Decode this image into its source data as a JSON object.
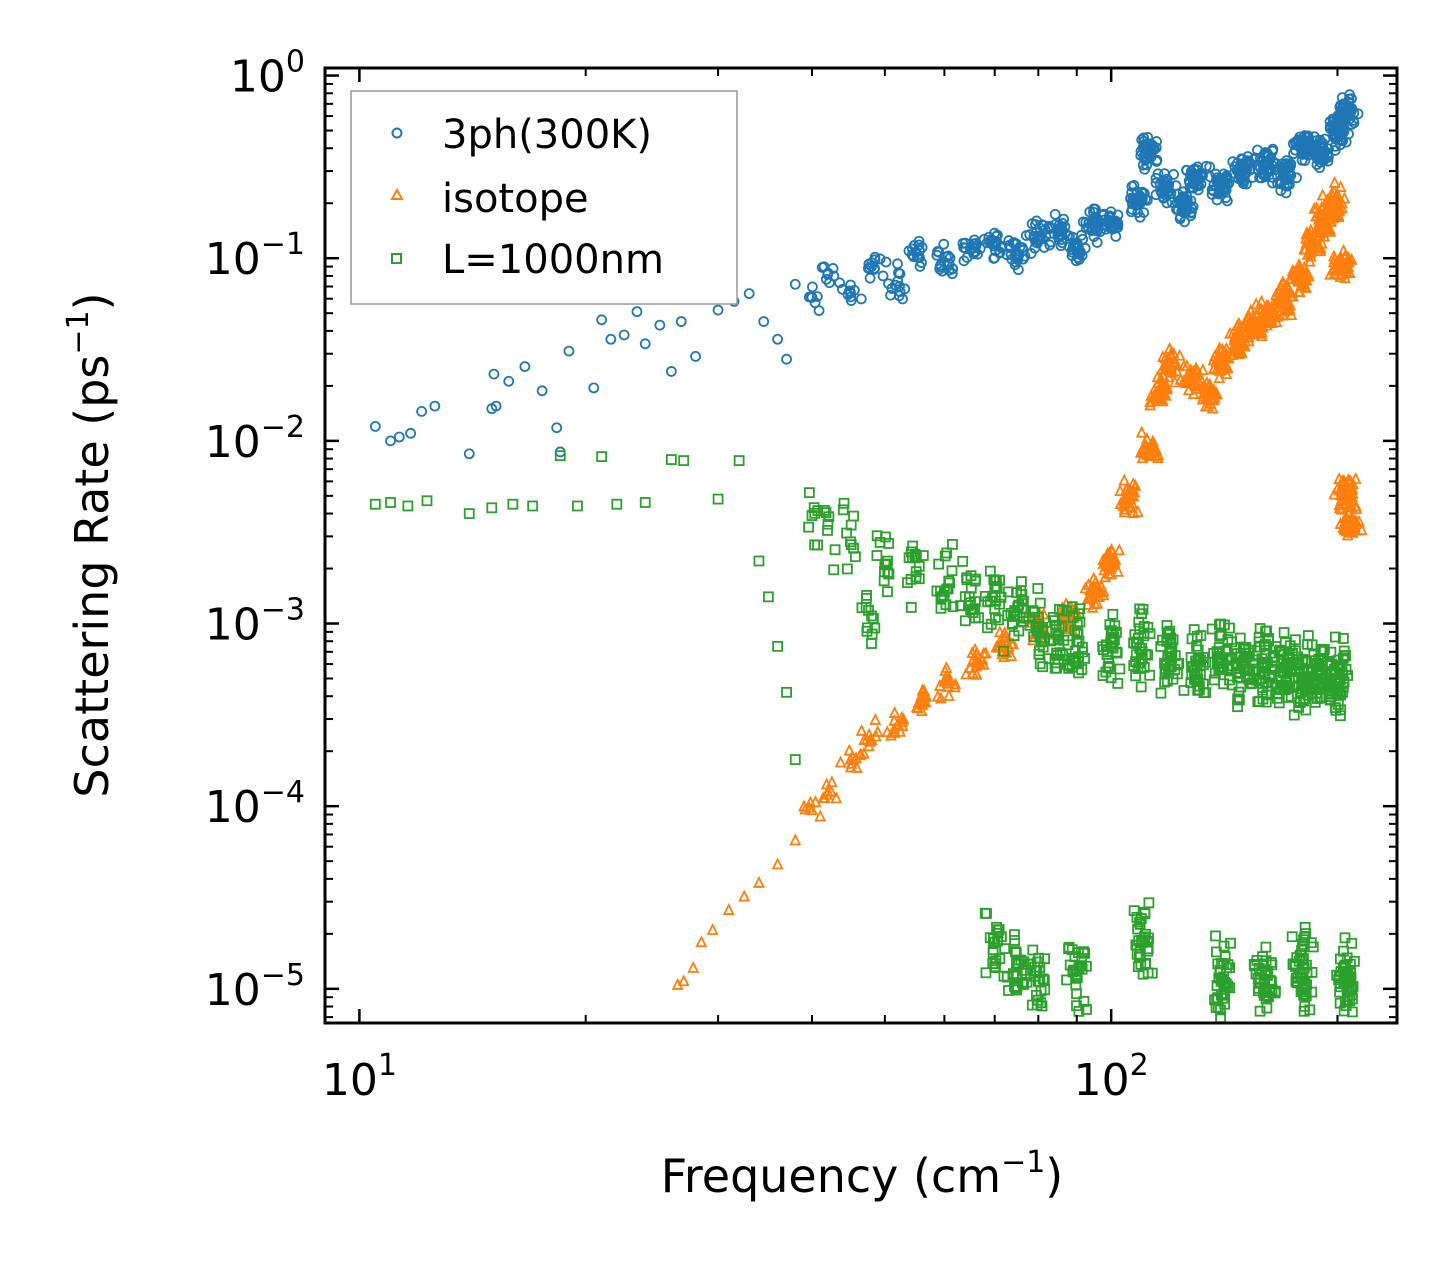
{
  "chart_data": {
    "type": "scatter",
    "xscale": "log",
    "yscale": "log",
    "xlim": [
      9,
      240
    ],
    "ylim": [
      6.5e-06,
      1.1
    ],
    "xlabel": "Frequency (cm",
    "xlabel_sup": "−1",
    "xlabel_end": ")",
    "ylabel": "Scattering Rate (ps",
    "ylabel_sup": "−1",
    "ylabel_end": ")",
    "x_ticks": [
      {
        "value": 10,
        "base": "10",
        "exp": "1"
      },
      {
        "value": 100,
        "base": "10",
        "exp": "2"
      }
    ],
    "y_ticks": [
      {
        "value": 1,
        "base": "10",
        "exp": "0"
      },
      {
        "value": 0.1,
        "base": "10",
        "exp": "−1"
      },
      {
        "value": 0.01,
        "base": "10",
        "exp": "−2"
      },
      {
        "value": 0.001,
        "base": "10",
        "exp": "−3"
      },
      {
        "value": 0.0001,
        "base": "10",
        "exp": "−4"
      },
      {
        "value": 1e-05,
        "base": "10",
        "exp": "−5"
      }
    ],
    "legend_position": "top-left",
    "series": [
      {
        "name": "3ph(300K)",
        "marker": "circle",
        "color": "#1f77b4",
        "points": [
          [
            10.5,
            0.012
          ],
          [
            11,
            0.01
          ],
          [
            11.3,
            0.0105
          ],
          [
            11.7,
            0.011
          ],
          [
            12.1,
            0.0145
          ],
          [
            12.6,
            0.0155
          ],
          [
            14,
            0.0085
          ],
          [
            15,
            0.015
          ],
          [
            15.2,
            0.0155
          ],
          [
            15.1,
            0.0232
          ],
          [
            15.8,
            0.0212
          ],
          [
            16.6,
            0.0255
          ],
          [
            17.5,
            0.0188
          ],
          [
            18.3,
            0.0118
          ],
          [
            18.5,
            0.0087
          ],
          [
            19,
            0.031
          ],
          [
            20.5,
            0.0195
          ],
          [
            21,
            0.046
          ],
          [
            21.6,
            0.036
          ],
          [
            22.5,
            0.038
          ],
          [
            23.4,
            0.051
          ],
          [
            24,
            0.034
          ],
          [
            25.1,
            0.043
          ],
          [
            26,
            0.024
          ],
          [
            26.8,
            0.045
          ],
          [
            28,
            0.029
          ],
          [
            29,
            0.068
          ],
          [
            30,
            0.052
          ],
          [
            31.5,
            0.058
          ],
          [
            33,
            0.064
          ],
          [
            34.5,
            0.045
          ],
          [
            36,
            0.036
          ],
          [
            37,
            0.028
          ],
          [
            38,
            0.072
          ],
          [
            40,
            0.061
          ],
          [
            42,
            0.083
          ],
          [
            45,
            0.065
          ],
          [
            48,
            0.09
          ],
          [
            52,
            0.075
          ],
          [
            55,
            0.108
          ],
          [
            60,
            0.095
          ],
          [
            65,
            0.112
          ],
          [
            70,
            0.12
          ],
          [
            75,
            0.107
          ],
          [
            80,
            0.132
          ],
          [
            85,
            0.14
          ],
          [
            90,
            0.115
          ],
          [
            95,
            0.155
          ],
          [
            100,
            0.16
          ],
          [
            108,
            0.21
          ],
          [
            112,
            0.38
          ],
          [
            118,
            0.24
          ],
          [
            125,
            0.2
          ],
          [
            130,
            0.28
          ],
          [
            140,
            0.25
          ],
          [
            150,
            0.3
          ],
          [
            160,
            0.32
          ],
          [
            170,
            0.29
          ],
          [
            180,
            0.41
          ],
          [
            190,
            0.38
          ],
          [
            200,
            0.5
          ],
          [
            205,
            0.62
          ]
        ]
      },
      {
        "name": "isotope",
        "marker": "triangle",
        "color": "#ff7f0e",
        "points": [
          [
            26.5,
            1.05e-05
          ],
          [
            27,
            1.1e-05
          ],
          [
            27.8,
            1.3e-05
          ],
          [
            28.5,
            1.8e-05
          ],
          [
            29.5,
            2.1e-05
          ],
          [
            31,
            2.7e-05
          ],
          [
            32.5,
            3.2e-05
          ],
          [
            34,
            3.8e-05
          ],
          [
            36,
            4.8e-05
          ],
          [
            38,
            6.5e-05
          ],
          [
            40,
            9.5e-05
          ],
          [
            42,
            0.00012
          ],
          [
            45,
            0.00018
          ],
          [
            48,
            0.00023
          ],
          [
            52,
            0.00028
          ],
          [
            56,
            0.00038
          ],
          [
            60,
            0.00048
          ],
          [
            66,
            0.00062
          ],
          [
            72,
            0.00075
          ],
          [
            80,
            0.00095
          ],
          [
            88,
            0.0011
          ],
          [
            95,
            0.0015
          ],
          [
            100,
            0.0022
          ],
          [
            106,
            0.0048
          ],
          [
            112,
            0.009
          ],
          [
            116,
            0.018
          ],
          [
            120,
            0.026
          ],
          [
            128,
            0.022
          ],
          [
            135,
            0.018
          ],
          [
            140,
            0.028
          ],
          [
            148,
            0.035
          ],
          [
            155,
            0.042
          ],
          [
            162,
            0.048
          ],
          [
            170,
            0.06
          ],
          [
            178,
            0.08
          ],
          [
            185,
            0.12
          ],
          [
            192,
            0.16
          ],
          [
            198,
            0.2
          ],
          [
            203,
            0.09
          ],
          [
            205,
            0.0052
          ],
          [
            208,
            0.0036
          ]
        ]
      },
      {
        "name": "L=1000nm",
        "marker": "square",
        "color": "#2ca02c",
        "points": [
          [
            10.5,
            0.0045
          ],
          [
            11,
            0.0046
          ],
          [
            11.6,
            0.0044
          ],
          [
            12.3,
            0.0047
          ],
          [
            14,
            0.004
          ],
          [
            15,
            0.0043
          ],
          [
            16,
            0.0045
          ],
          [
            17,
            0.0044
          ],
          [
            18.5,
            0.0083
          ],
          [
            19.5,
            0.0044
          ],
          [
            21,
            0.0082
          ],
          [
            22,
            0.0045
          ],
          [
            24,
            0.0046
          ],
          [
            26,
            0.0079
          ],
          [
            27,
            0.0078
          ],
          [
            30,
            0.0048
          ],
          [
            32,
            0.0078
          ],
          [
            34,
            0.0022
          ],
          [
            35,
            0.0014
          ],
          [
            36,
            0.00075
          ],
          [
            37,
            0.00042
          ],
          [
            38,
            0.00018
          ],
          [
            40,
            0.0039
          ],
          [
            42,
            0.0035
          ],
          [
            45,
            0.0028
          ],
          [
            48,
            0.0011
          ],
          [
            50,
            0.0021
          ],
          [
            55,
            0.0018
          ],
          [
            60,
            0.0015
          ],
          [
            65,
            0.0013
          ],
          [
            70,
            0.0012
          ],
          [
            75,
            0.0011
          ],
          [
            80,
            0.00095
          ],
          [
            85,
            0.00085
          ],
          [
            90,
            0.0008
          ],
          [
            100,
            0.00075
          ],
          [
            110,
            0.0007
          ],
          [
            120,
            0.00065
          ],
          [
            130,
            0.0006
          ],
          [
            140,
            0.00062
          ],
          [
            150,
            0.00058
          ],
          [
            160,
            0.0006
          ],
          [
            170,
            0.00055
          ],
          [
            180,
            0.0005
          ],
          [
            190,
            0.00052
          ],
          [
            200,
            0.0005
          ],
          [
            70,
            1.8e-05
          ],
          [
            75,
            1.2e-05
          ],
          [
            80,
            1.1e-05
          ],
          [
            90,
            1.2e-05
          ],
          [
            110,
            1.8e-05
          ],
          [
            140,
            1.1e-05
          ],
          [
            160,
            1.1e-05
          ],
          [
            180,
            1.3e-05
          ],
          [
            205,
            1.1e-05
          ]
        ]
      }
    ]
  }
}
